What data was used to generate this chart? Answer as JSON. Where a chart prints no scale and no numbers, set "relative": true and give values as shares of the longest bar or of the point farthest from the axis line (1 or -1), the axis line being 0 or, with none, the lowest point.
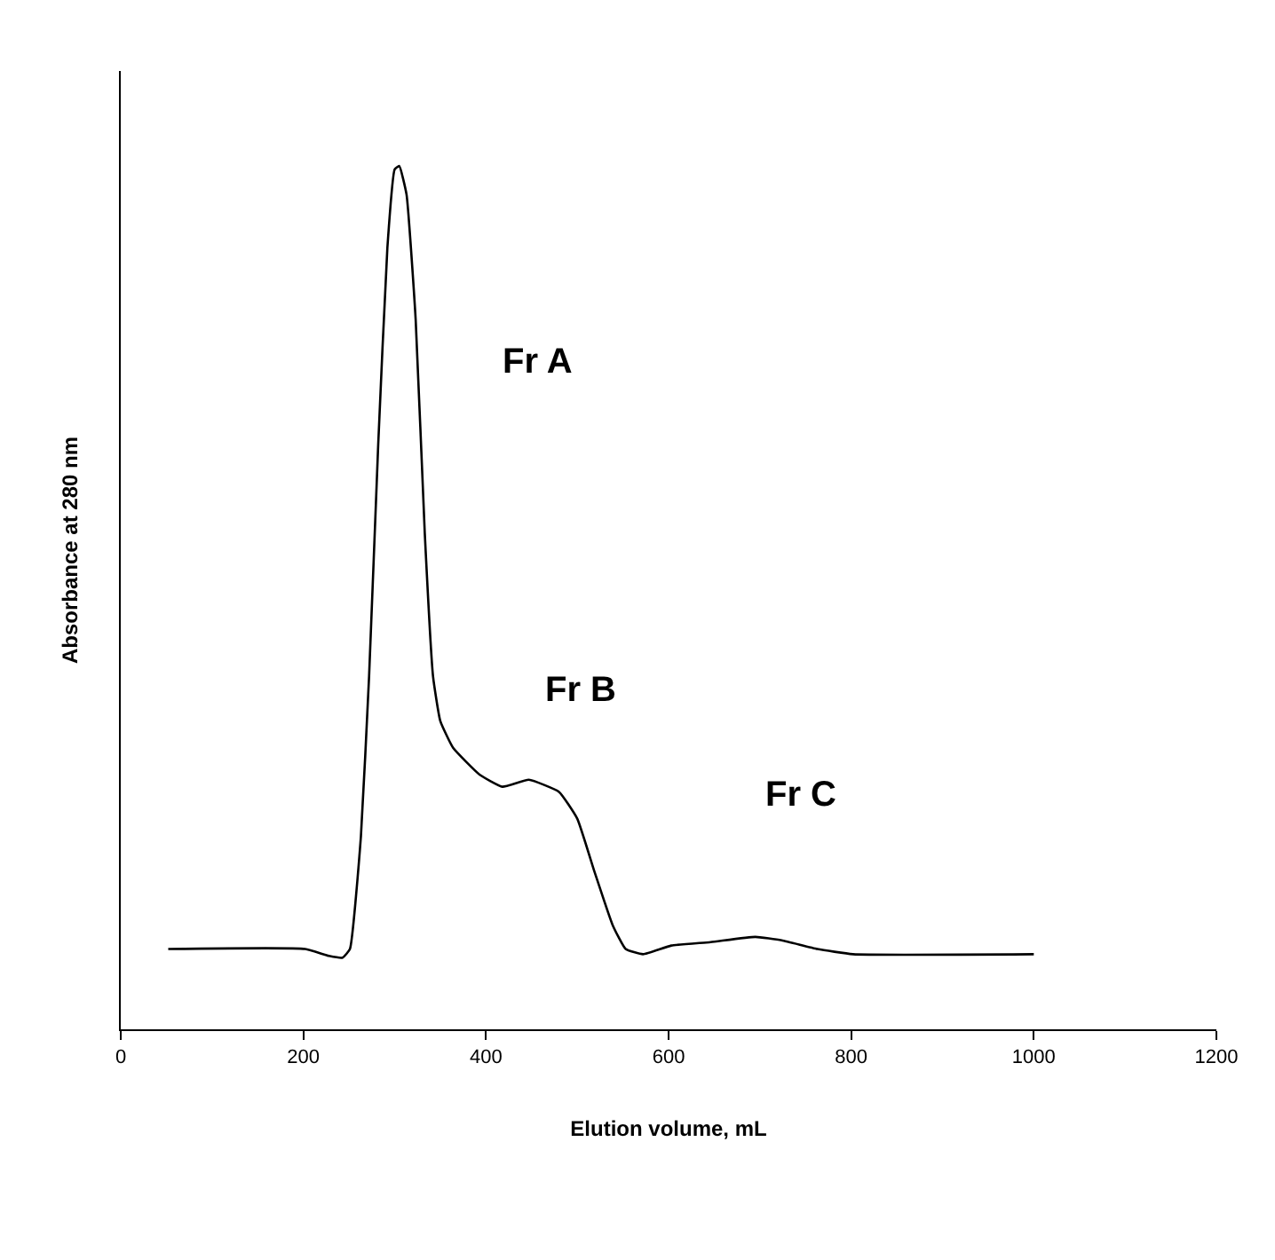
{
  "chart_data": {
    "type": "line",
    "relative": true,
    "xlabel": "Elution volume, mL",
    "ylabel": "Absorbance at 280 nm",
    "xlim": [
      0,
      1200
    ],
    "xticks": [
      0,
      200,
      400,
      600,
      800,
      1000,
      1200
    ],
    "marker": "none",
    "line_style": "solid",
    "series": [
      {
        "color": "#000000",
        "x": [
          52,
          202,
          228,
          243,
          251,
          263,
          272,
          282,
          292,
          300,
          305,
          313,
          323,
          333,
          342,
          350,
          364,
          393,
          418,
          447,
          480,
          500,
          519,
          539,
          553,
          572,
          603,
          646,
          695,
          724,
          763,
          802,
          1000
        ],
        "values": [
          0.093,
          0.093,
          0.085,
          0.083,
          0.093,
          0.223,
          0.409,
          0.678,
          0.905,
          0.996,
          1,
          0.967,
          0.822,
          0.574,
          0.409,
          0.357,
          0.326,
          0.295,
          0.281,
          0.289,
          0.275,
          0.244,
          0.182,
          0.12,
          0.093,
          0.087,
          0.097,
          0.101,
          0.107,
          0.103,
          0.093,
          0.087,
          0.087
        ]
      }
    ],
    "annotations": [
      "Fr A",
      "Fr B",
      "Fr C"
    ]
  }
}
